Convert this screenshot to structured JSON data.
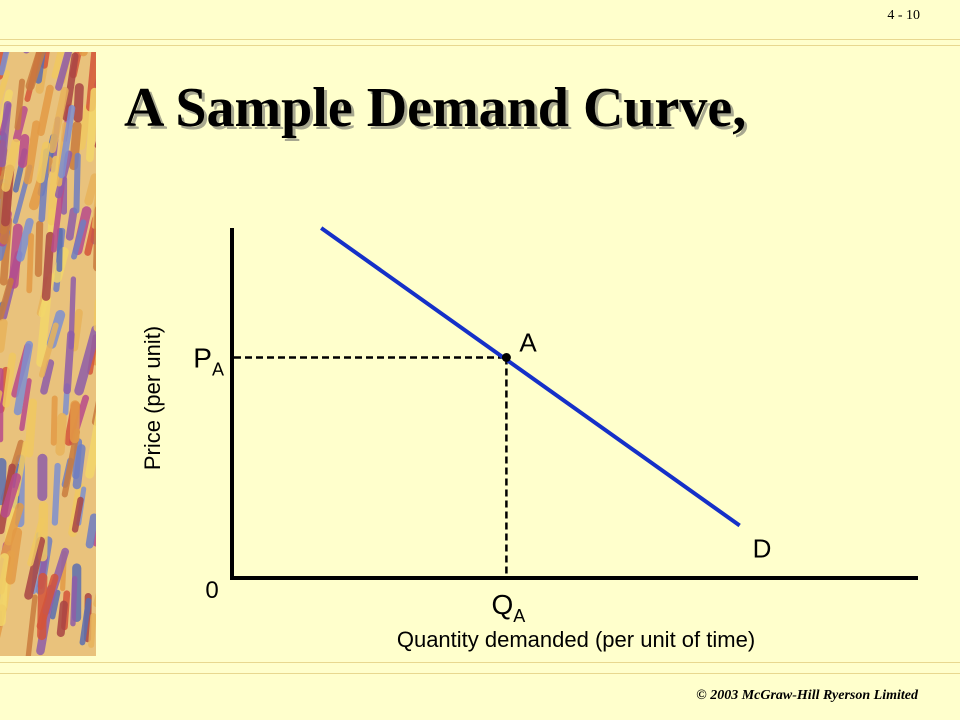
{
  "slide": {
    "number": "4 - 10",
    "title": "A Sample Demand Curve,",
    "footer": "© 2003 McGraw-Hill Ryerson Limited"
  },
  "colors": {
    "background": "#FFFFCC",
    "curve": "#1530C8",
    "axes": "#000000"
  },
  "chart_data": {
    "type": "line",
    "title": "",
    "xlabel": "Quantity demanded (per unit of time)",
    "ylabel": "Price (per unit)",
    "origin_label": "0",
    "grid": false,
    "series": [
      {
        "name": "D",
        "points": [
          {
            "x": 0.13,
            "y": 1.0
          },
          {
            "x": 0.74,
            "y": 0.15
          }
        ]
      }
    ],
    "point": {
      "label": "A",
      "x": 0.4,
      "y": 0.63
    },
    "price_label": {
      "main": "P",
      "sub": "A"
    },
    "quantity_label": {
      "main": "Q",
      "sub": "A"
    },
    "xlim": [
      0,
      1
    ],
    "ylim": [
      0,
      1
    ]
  }
}
